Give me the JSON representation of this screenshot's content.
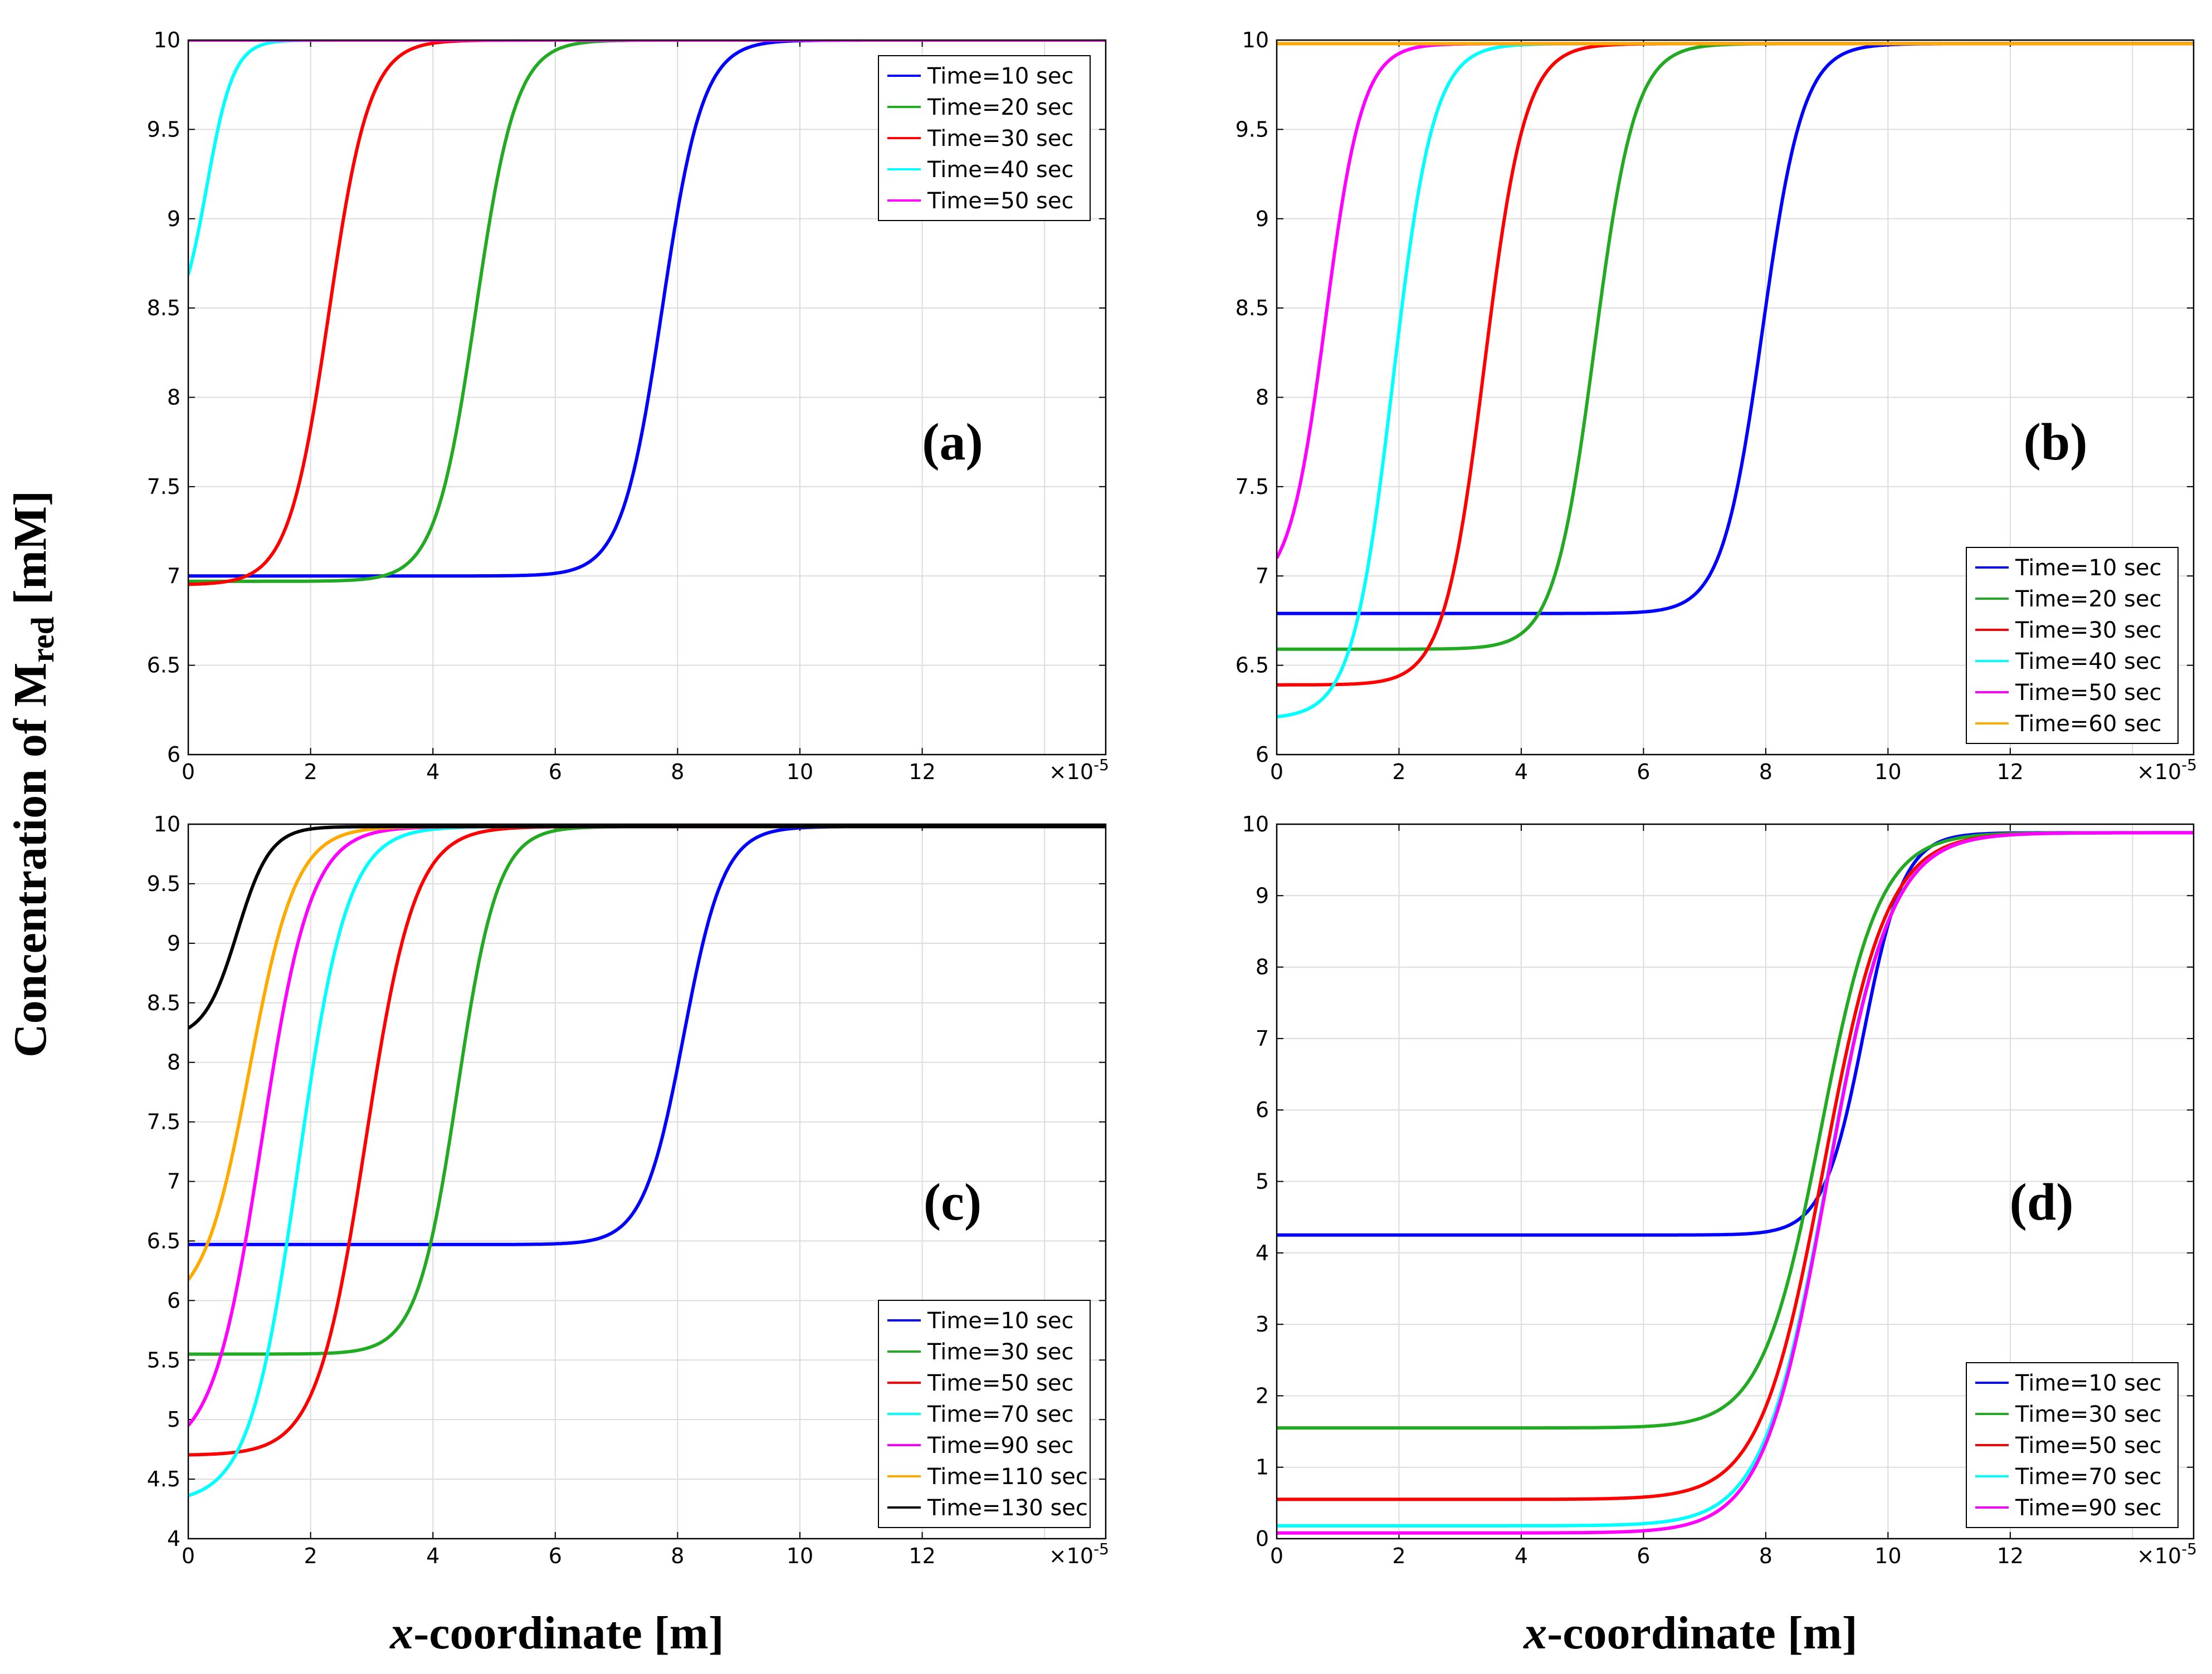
{
  "figure": {
    "ylabel_prefix": "Concentration of M",
    "ylabel_sub": "red",
    "ylabel_suffix": " [mM]",
    "xlabel_italic": "x",
    "xlabel_rest": "-coordinate [m]",
    "x_multiplier": "×10",
    "x_multiplier_exp": "-5"
  },
  "chart_data": [
    {
      "type": "line",
      "label": "(a)",
      "xlim": [
        0,
        15
      ],
      "ylim": [
        6,
        10
      ],
      "x_ticks": [
        "0",
        "2",
        "4",
        "6",
        "8",
        "10",
        "12"
      ],
      "y_ticks": [
        "6",
        "6.5",
        "7",
        "7.5",
        "8",
        "8.5",
        "9",
        "9.5",
        "10"
      ],
      "legend_position": "top-right",
      "series": [
        {
          "name": "Time=10 sec",
          "color": "#0000ff",
          "base": 7.0,
          "top": 10.0,
          "mid": 7.75,
          "width": 0.33
        },
        {
          "name": "Time=20 sec",
          "color": "#22aa22",
          "base": 6.97,
          "top": 10.0,
          "mid": 4.7,
          "width": 0.33
        },
        {
          "name": "Time=30 sec",
          "color": "#ff0000",
          "base": 6.95,
          "top": 10.0,
          "mid": 2.3,
          "width": 0.33
        },
        {
          "name": "Time=40 sec",
          "color": "#00ffff",
          "base": 8.35,
          "top": 10.0,
          "mid": 0.3,
          "width": 0.22
        },
        {
          "name": "Time=50 sec",
          "color": "#ff00ff",
          "base": 10.0,
          "top": 10.0,
          "mid": 0,
          "width": 0.3
        }
      ]
    },
    {
      "type": "line",
      "label": "(b)",
      "xlim": [
        0,
        15
      ],
      "ylim": [
        6,
        10
      ],
      "x_ticks": [
        "0",
        "2",
        "4",
        "6",
        "8",
        "10",
        "12"
      ],
      "y_ticks": [
        "6",
        "6.5",
        "7",
        "7.5",
        "8",
        "8.5",
        "9",
        "9.5",
        "10"
      ],
      "legend_position": "bottom-right",
      "series": [
        {
          "name": "Time=10 sec",
          "color": "#0000ff",
          "base": 6.79,
          "top": 9.98,
          "mid": 7.95,
          "width": 0.33
        },
        {
          "name": "Time=20 sec",
          "color": "#22aa22",
          "base": 6.59,
          "top": 9.98,
          "mid": 5.2,
          "width": 0.33
        },
        {
          "name": "Time=30 sec",
          "color": "#ff0000",
          "base": 6.39,
          "top": 9.98,
          "mid": 3.4,
          "width": 0.33
        },
        {
          "name": "Time=40 sec",
          "color": "#00ffff",
          "base": 6.2,
          "top": 9.98,
          "mid": 1.9,
          "width": 0.33
        },
        {
          "name": "Time=50 sec",
          "color": "#ff00ff",
          "base": 6.9,
          "top": 9.98,
          "mid": 0.8,
          "width": 0.3
        },
        {
          "name": "Time=60 sec",
          "color": "#ffaa00",
          "base": 9.98,
          "top": 9.98,
          "mid": 0,
          "width": 0.3
        }
      ]
    },
    {
      "type": "line",
      "label": "(c)",
      "xlim": [
        0,
        15
      ],
      "ylim": [
        4,
        10
      ],
      "x_ticks": [
        "0",
        "2",
        "4",
        "6",
        "8",
        "10",
        "12"
      ],
      "y_ticks": [
        "4",
        "4.5",
        "5",
        "5.5",
        "6",
        "6.5",
        "7",
        "7.5",
        "8",
        "8.5",
        "9",
        "9.5",
        "10"
      ],
      "legend_position": "bottom-right",
      "series": [
        {
          "name": "Time=10 sec",
          "color": "#0000ff",
          "base": 6.47,
          "top": 9.98,
          "mid": 8.1,
          "width": 0.33
        },
        {
          "name": "Time=30 sec",
          "color": "#22aa22",
          "base": 5.55,
          "top": 9.98,
          "mid": 4.4,
          "width": 0.33
        },
        {
          "name": "Time=50 sec",
          "color": "#ff0000",
          "base": 4.7,
          "top": 9.98,
          "mid": 2.9,
          "width": 0.4
        },
        {
          "name": "Time=70 sec",
          "color": "#00ffff",
          "base": 4.3,
          "top": 9.98,
          "mid": 1.8,
          "width": 0.4
        },
        {
          "name": "Time=90 sec",
          "color": "#ff00ff",
          "base": 4.7,
          "top": 9.98,
          "mid": 1.2,
          "width": 0.4
        },
        {
          "name": "Time=110 sec",
          "color": "#ffaa00",
          "base": 5.9,
          "top": 9.98,
          "mid": 1.0,
          "width": 0.38
        },
        {
          "name": "Time=130 sec",
          "color": "#000000",
          "base": 8.2,
          "top": 9.98,
          "mid": 0.8,
          "width": 0.27
        }
      ]
    },
    {
      "type": "line",
      "label": "(d)",
      "xlim": [
        0,
        15
      ],
      "ylim": [
        0,
        10
      ],
      "x_ticks": [
        "0",
        "2",
        "4",
        "6",
        "8",
        "10",
        "12"
      ],
      "y_ticks": [
        "0",
        "1",
        "2",
        "3",
        "4",
        "5",
        "6",
        "7",
        "8",
        "9",
        "10"
      ],
      "legend_position": "bottom-right",
      "series": [
        {
          "name": "Time=10 sec",
          "color": "#0000ff",
          "base": 4.25,
          "top": 9.88,
          "mid": 9.6,
          "width": 0.33
        },
        {
          "name": "Time=30 sec",
          "color": "#22aa22",
          "base": 1.55,
          "top": 9.88,
          "mid": 8.9,
          "width": 0.48
        },
        {
          "name": "Time=50 sec",
          "color": "#ff0000",
          "base": 0.55,
          "top": 9.88,
          "mid": 8.95,
          "width": 0.52
        },
        {
          "name": "Time=70 sec",
          "color": "#00ffff",
          "base": 0.18,
          "top": 9.88,
          "mid": 9.0,
          "width": 0.52
        },
        {
          "name": "Time=90 sec",
          "color": "#ff00ff",
          "base": 0.08,
          "top": 9.88,
          "mid": 9.0,
          "width": 0.52
        }
      ]
    }
  ]
}
